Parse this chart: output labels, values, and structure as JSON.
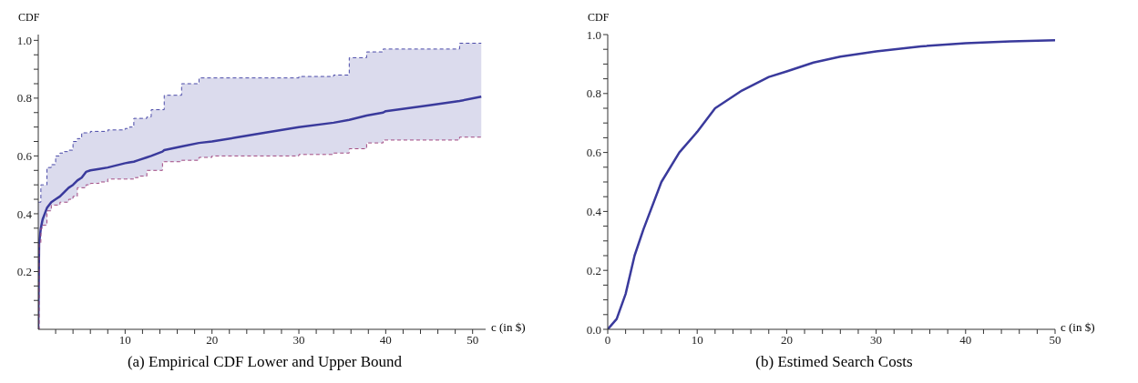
{
  "chart_data": [
    {
      "type": "line",
      "title": "(a) Empirical CDF Lower and Upper Bound",
      "xlabel": "c (in $)",
      "ylabel": "CDF",
      "xlim": [
        0,
        51.5
      ],
      "ylim": [
        0,
        1.02
      ],
      "xticks": [
        {
          "value": 2,
          "label": null
        },
        {
          "value": 4,
          "label": null
        },
        {
          "value": 6,
          "label": null
        },
        {
          "value": 8,
          "label": null
        },
        10,
        {
          "value": 12,
          "label": null
        },
        {
          "value": 14,
          "label": null
        },
        {
          "value": 16,
          "label": null
        },
        {
          "value": 18,
          "label": null
        },
        20,
        {
          "value": 22,
          "label": null
        },
        {
          "value": 24,
          "label": null
        },
        {
          "value": 26,
          "label": null
        },
        {
          "value": 28,
          "label": null
        },
        30,
        {
          "value": 32,
          "label": null
        },
        {
          "value": 34,
          "label": null
        },
        {
          "value": 36,
          "label": null
        },
        {
          "value": 38,
          "label": null
        },
        40,
        {
          "value": 42,
          "label": null
        },
        {
          "value": 44,
          "label": null
        },
        {
          "value": 46,
          "label": null
        },
        {
          "value": 48,
          "label": null
        },
        50
      ],
      "yticks": [
        {
          "value": 0.05,
          "label": null
        },
        {
          "value": 0.1,
          "label": null
        },
        {
          "value": 0.15,
          "label": null
        },
        0.2,
        {
          "value": 0.25,
          "label": null
        },
        {
          "value": 0.3,
          "label": null
        },
        {
          "value": 0.35,
          "label": null
        },
        0.4,
        {
          "value": 0.45,
          "label": null
        },
        {
          "value": 0.5,
          "label": null
        },
        {
          "value": 0.55,
          "label": null
        },
        0.6,
        {
          "value": 0.65,
          "label": null
        },
        {
          "value": 0.7,
          "label": null
        },
        {
          "value": 0.75,
          "label": null
        },
        0.8,
        {
          "value": 0.85,
          "label": null
        },
        {
          "value": 0.9,
          "label": null
        },
        {
          "value": 0.95,
          "label": null
        },
        {
          "value": 1,
          "label": "1.0"
        }
      ],
      "x": [
        0,
        0.1,
        0.3,
        0.5,
        1,
        1.5,
        2,
        2.5,
        3,
        3.5,
        4,
        4.5,
        5,
        5.5,
        6,
        7,
        8,
        10,
        10.5,
        11,
        11.5,
        12.5,
        13,
        14.3,
        14.5,
        16.5,
        18.5,
        20,
        23,
        26,
        30,
        34,
        35.8,
        37.8,
        39.7,
        40,
        45,
        48.5,
        51
      ],
      "series": [
        {
          "color": "#3a3a9c",
          "values": [
            0,
            0.3,
            0.35,
            0.38,
            0.42,
            0.44,
            0.45,
            0.46,
            0.475,
            0.49,
            0.5,
            0.515,
            0.525,
            0.545,
            0.55,
            0.555,
            0.56,
            0.575,
            0.578,
            0.58,
            0.585,
            0.595,
            0.6,
            0.615,
            0.62,
            0.633,
            0.645,
            0.65,
            0.665,
            0.68,
            0.7,
            0.715,
            0.725,
            0.74,
            0.75,
            0.755,
            0.775,
            0.79,
            0.805
          ],
          "upper": [
            0.44,
            0.44,
            0.5,
            0.5,
            0.56,
            0.57,
            0.6,
            0.61,
            0.615,
            0.62,
            0.65,
            0.66,
            0.68,
            0.68,
            0.685,
            0.685,
            0.69,
            0.695,
            0.7,
            0.73,
            0.73,
            0.735,
            0.76,
            0.76,
            0.81,
            0.85,
            0.87,
            0.87,
            0.87,
            0.87,
            0.875,
            0.88,
            0.94,
            0.96,
            0.97,
            0.97,
            0.97,
            0.99,
            0.99
          ],
          "lower": [
            0,
            0.3,
            0.35,
            0.36,
            0.41,
            0.43,
            0.43,
            0.44,
            0.44,
            0.45,
            0.46,
            0.49,
            0.49,
            0.5,
            0.505,
            0.51,
            0.52,
            0.52,
            0.52,
            0.525,
            0.53,
            0.55,
            0.55,
            0.58,
            0.58,
            0.585,
            0.595,
            0.6,
            0.6,
            0.6,
            0.605,
            0.61,
            0.625,
            0.645,
            0.655,
            0.655,
            0.655,
            0.665,
            0.665
          ]
        },
        {
          "type": "step",
          "color": "#4a4aa8",
          "line_style": "dashed",
          "values": [
            0.44,
            0.44,
            0.5,
            0.5,
            0.56,
            0.57,
            0.6,
            0.61,
            0.615,
            0.62,
            0.65,
            0.66,
            0.68,
            0.68,
            0.685,
            0.685,
            0.69,
            0.695,
            0.7,
            0.73,
            0.73,
            0.735,
            0.76,
            0.76,
            0.81,
            0.85,
            0.87,
            0.87,
            0.87,
            0.87,
            0.875,
            0.88,
            0.94,
            0.96,
            0.97,
            0.97,
            0.97,
            0.99,
            0.99
          ]
        },
        {
          "type": "step",
          "color": "#a04880",
          "line_style": "dashed",
          "values": [
            0,
            0.3,
            0.35,
            0.36,
            0.41,
            0.43,
            0.43,
            0.44,
            0.44,
            0.45,
            0.46,
            0.49,
            0.49,
            0.5,
            0.505,
            0.51,
            0.52,
            0.52,
            0.52,
            0.525,
            0.53,
            0.55,
            0.55,
            0.58,
            0.58,
            0.585,
            0.595,
            0.6,
            0.6,
            0.6,
            0.605,
            0.61,
            0.625,
            0.645,
            0.655,
            0.655,
            0.655,
            0.665,
            0.665
          ]
        }
      ]
    },
    {
      "type": "line",
      "title": "(b) Estimed Search Costs",
      "xlabel": "c (in $)",
      "ylabel": "CDF",
      "xlim": [
        0,
        50
      ],
      "ylim": [
        0,
        1
      ],
      "xticks": [
        0,
        {
          "value": 2,
          "label": null
        },
        {
          "value": 4,
          "label": null
        },
        {
          "value": 6,
          "label": null
        },
        {
          "value": 8,
          "label": null
        },
        10,
        {
          "value": 12,
          "label": null
        },
        {
          "value": 14,
          "label": null
        },
        {
          "value": 16,
          "label": null
        },
        {
          "value": 18,
          "label": null
        },
        20,
        {
          "value": 22,
          "label": null
        },
        {
          "value": 24,
          "label": null
        },
        {
          "value": 26,
          "label": null
        },
        {
          "value": 28,
          "label": null
        },
        30,
        {
          "value": 32,
          "label": null
        },
        {
          "value": 34,
          "label": null
        },
        {
          "value": 36,
          "label": null
        },
        {
          "value": 38,
          "label": null
        },
        40,
        {
          "value": 42,
          "label": null
        },
        {
          "value": 44,
          "label": null
        },
        {
          "value": 46,
          "label": null
        },
        {
          "value": 48,
          "label": null
        },
        50
      ],
      "yticks": [
        {
          "value": 0,
          "label": "0.0"
        },
        {
          "value": 0.05,
          "label": null
        },
        {
          "value": 0.1,
          "label": null
        },
        {
          "value": 0.15,
          "label": null
        },
        0.2,
        {
          "value": 0.25,
          "label": null
        },
        {
          "value": 0.3,
          "label": null
        },
        {
          "value": 0.35,
          "label": null
        },
        0.4,
        {
          "value": 0.45,
          "label": null
        },
        {
          "value": 0.5,
          "label": null
        },
        {
          "value": 0.55,
          "label": null
        },
        0.6,
        {
          "value": 0.65,
          "label": null
        },
        {
          "value": 0.7,
          "label": null
        },
        {
          "value": 0.75,
          "label": null
        },
        0.8,
        {
          "value": 0.85,
          "label": null
        },
        {
          "value": 0.9,
          "label": null
        },
        {
          "value": 0.95,
          "label": null
        },
        {
          "value": 1,
          "label": "1.0"
        }
      ],
      "x": [
        0,
        1,
        2,
        3,
        4,
        6,
        8,
        10,
        12,
        15,
        18,
        20,
        23,
        26,
        30,
        35,
        40,
        45,
        50
      ],
      "series": [
        {
          "color": "#3a3a9c",
          "values": [
            0,
            0.035,
            0.12,
            0.25,
            0.34,
            0.5,
            0.6,
            0.67,
            0.75,
            0.81,
            0.856,
            0.875,
            0.905,
            0.925,
            0.943,
            0.96,
            0.971,
            0.977,
            0.981
          ]
        }
      ]
    }
  ]
}
